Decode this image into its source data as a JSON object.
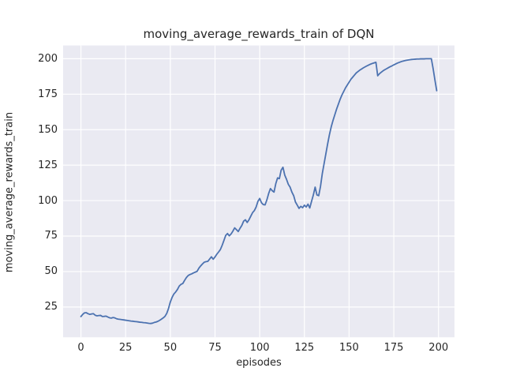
{
  "figure": {
    "background": "#ffffff",
    "plot_background": "#eaeaf2",
    "grid_color": "#ffffff",
    "text_color": "#262626",
    "line_color": "#4c72b0"
  },
  "chart_data": {
    "type": "line",
    "title": "moving_average_rewards_train of DQN",
    "xlabel": "episodes",
    "ylabel": "moving_average_rewards_train",
    "legend": "none",
    "grid": true,
    "xticks": [
      0,
      25,
      50,
      75,
      100,
      125,
      150,
      175,
      200
    ],
    "yticks": [
      25,
      50,
      75,
      100,
      125,
      150,
      175,
      200
    ],
    "xlim": [
      -9.95,
      208.95
    ],
    "ylim": [
      3.65,
      209.35
    ],
    "x": {
      "start": 0,
      "step": 1,
      "name": "episode"
    },
    "series": [
      {
        "name": "moving_average_rewards_train",
        "color": "#4c72b0",
        "values": [
          18.3,
          19.8,
          20.9,
          21.0,
          20.3,
          19.8,
          20.1,
          20.3,
          19.2,
          18.8,
          19.0,
          19.1,
          18.3,
          18.4,
          18.6,
          18.0,
          17.4,
          17.2,
          17.6,
          17.3,
          16.7,
          16.4,
          16.3,
          16.1,
          15.9,
          15.7,
          15.5,
          15.3,
          15.1,
          15.0,
          14.8,
          14.7,
          14.5,
          14.3,
          14.2,
          14.0,
          13.9,
          13.7,
          13.5,
          13.4,
          13.6,
          14.1,
          14.4,
          14.9,
          15.6,
          16.4,
          17.3,
          18.4,
          20.5,
          24.0,
          28.5,
          31.8,
          34.2,
          35.6,
          37.4,
          39.8,
          41.0,
          41.6,
          43.8,
          45.8,
          47.2,
          47.9,
          48.4,
          49.1,
          49.6,
          50.2,
          52.4,
          54.0,
          55.4,
          56.6,
          57.0,
          57.2,
          58.8,
          60.4,
          58.7,
          60.3,
          62.2,
          63.8,
          65.5,
          68.5,
          72.0,
          75.5,
          76.8,
          75.2,
          76.5,
          78.5,
          80.8,
          79.5,
          78.2,
          80.5,
          82.5,
          85.5,
          86.5,
          84.6,
          86.5,
          89.0,
          91.5,
          93.0,
          95.5,
          99.5,
          101.5,
          98.5,
          97.2,
          97.0,
          100.5,
          105.0,
          108.5,
          107.0,
          106.0,
          112.0,
          116.0,
          115.5,
          121.5,
          123.5,
          118.0,
          115.0,
          111.5,
          109.5,
          106.0,
          103.5,
          99.0,
          96.8,
          94.5,
          96.0,
          95.0,
          96.8,
          95.5,
          97.5,
          94.8,
          99.5,
          104.0,
          109.5,
          104.0,
          103.5,
          110.0,
          119.0,
          126.0,
          133.0,
          140.0,
          146.5,
          152.0,
          156.5,
          160.5,
          164.5,
          168.0,
          171.5,
          174.5,
          177.0,
          179.5,
          181.5,
          183.5,
          185.5,
          187.0,
          188.5,
          190.0,
          191.0,
          192.0,
          192.8,
          193.6,
          194.3,
          195.0,
          195.6,
          196.2,
          196.7,
          197.1,
          197.5,
          188.0,
          189.5,
          190.5,
          191.5,
          192.3,
          193.0,
          193.7,
          194.4,
          195.0,
          195.7,
          196.3,
          196.9,
          197.4,
          197.9,
          198.3,
          198.6,
          198.9,
          199.1,
          199.3,
          199.5,
          199.6,
          199.7,
          199.8,
          199.8,
          199.9,
          199.9,
          199.9,
          200.0,
          200.0,
          200.0,
          200.0,
          193.0,
          185.0,
          177.5
        ]
      }
    ]
  }
}
